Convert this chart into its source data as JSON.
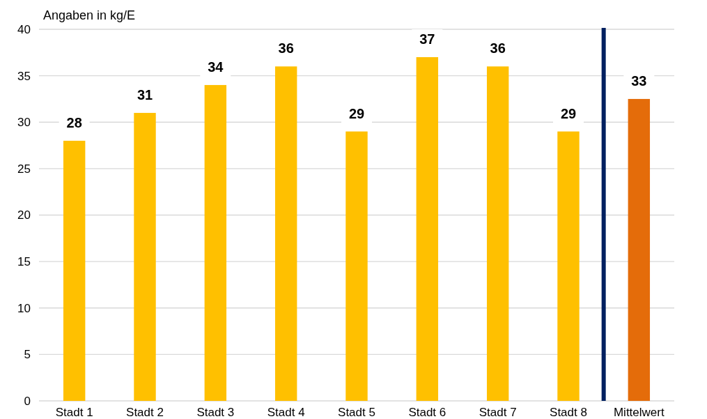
{
  "chart_data": {
    "type": "bar",
    "ylabel": "Angaben in kg/E",
    "categories": [
      "Stadt 1",
      "Stadt 2",
      "Stadt 3",
      "Stadt 4",
      "Stadt 5",
      "Stadt 6",
      "Stadt 7",
      "Stadt 8",
      "Mittelwert"
    ],
    "values": [
      28,
      31,
      34,
      36,
      29,
      37,
      36,
      29,
      32.5
    ],
    "value_labels": [
      "28",
      "31",
      "34",
      "36",
      "29",
      "37",
      "36",
      "29",
      "33"
    ],
    "colors": [
      "#ffc000",
      "#ffc000",
      "#ffc000",
      "#ffc000",
      "#ffc000",
      "#ffc000",
      "#ffc000",
      "#ffc000",
      "#e46c0a"
    ],
    "ylim": [
      0,
      40
    ],
    "yticks": [
      0,
      5,
      10,
      15,
      20,
      25,
      30,
      35,
      40
    ],
    "grid": "y",
    "ref_lines": [
      {
        "axis": "x",
        "value": "Mittelwert",
        "color": "#002060"
      }
    ]
  }
}
